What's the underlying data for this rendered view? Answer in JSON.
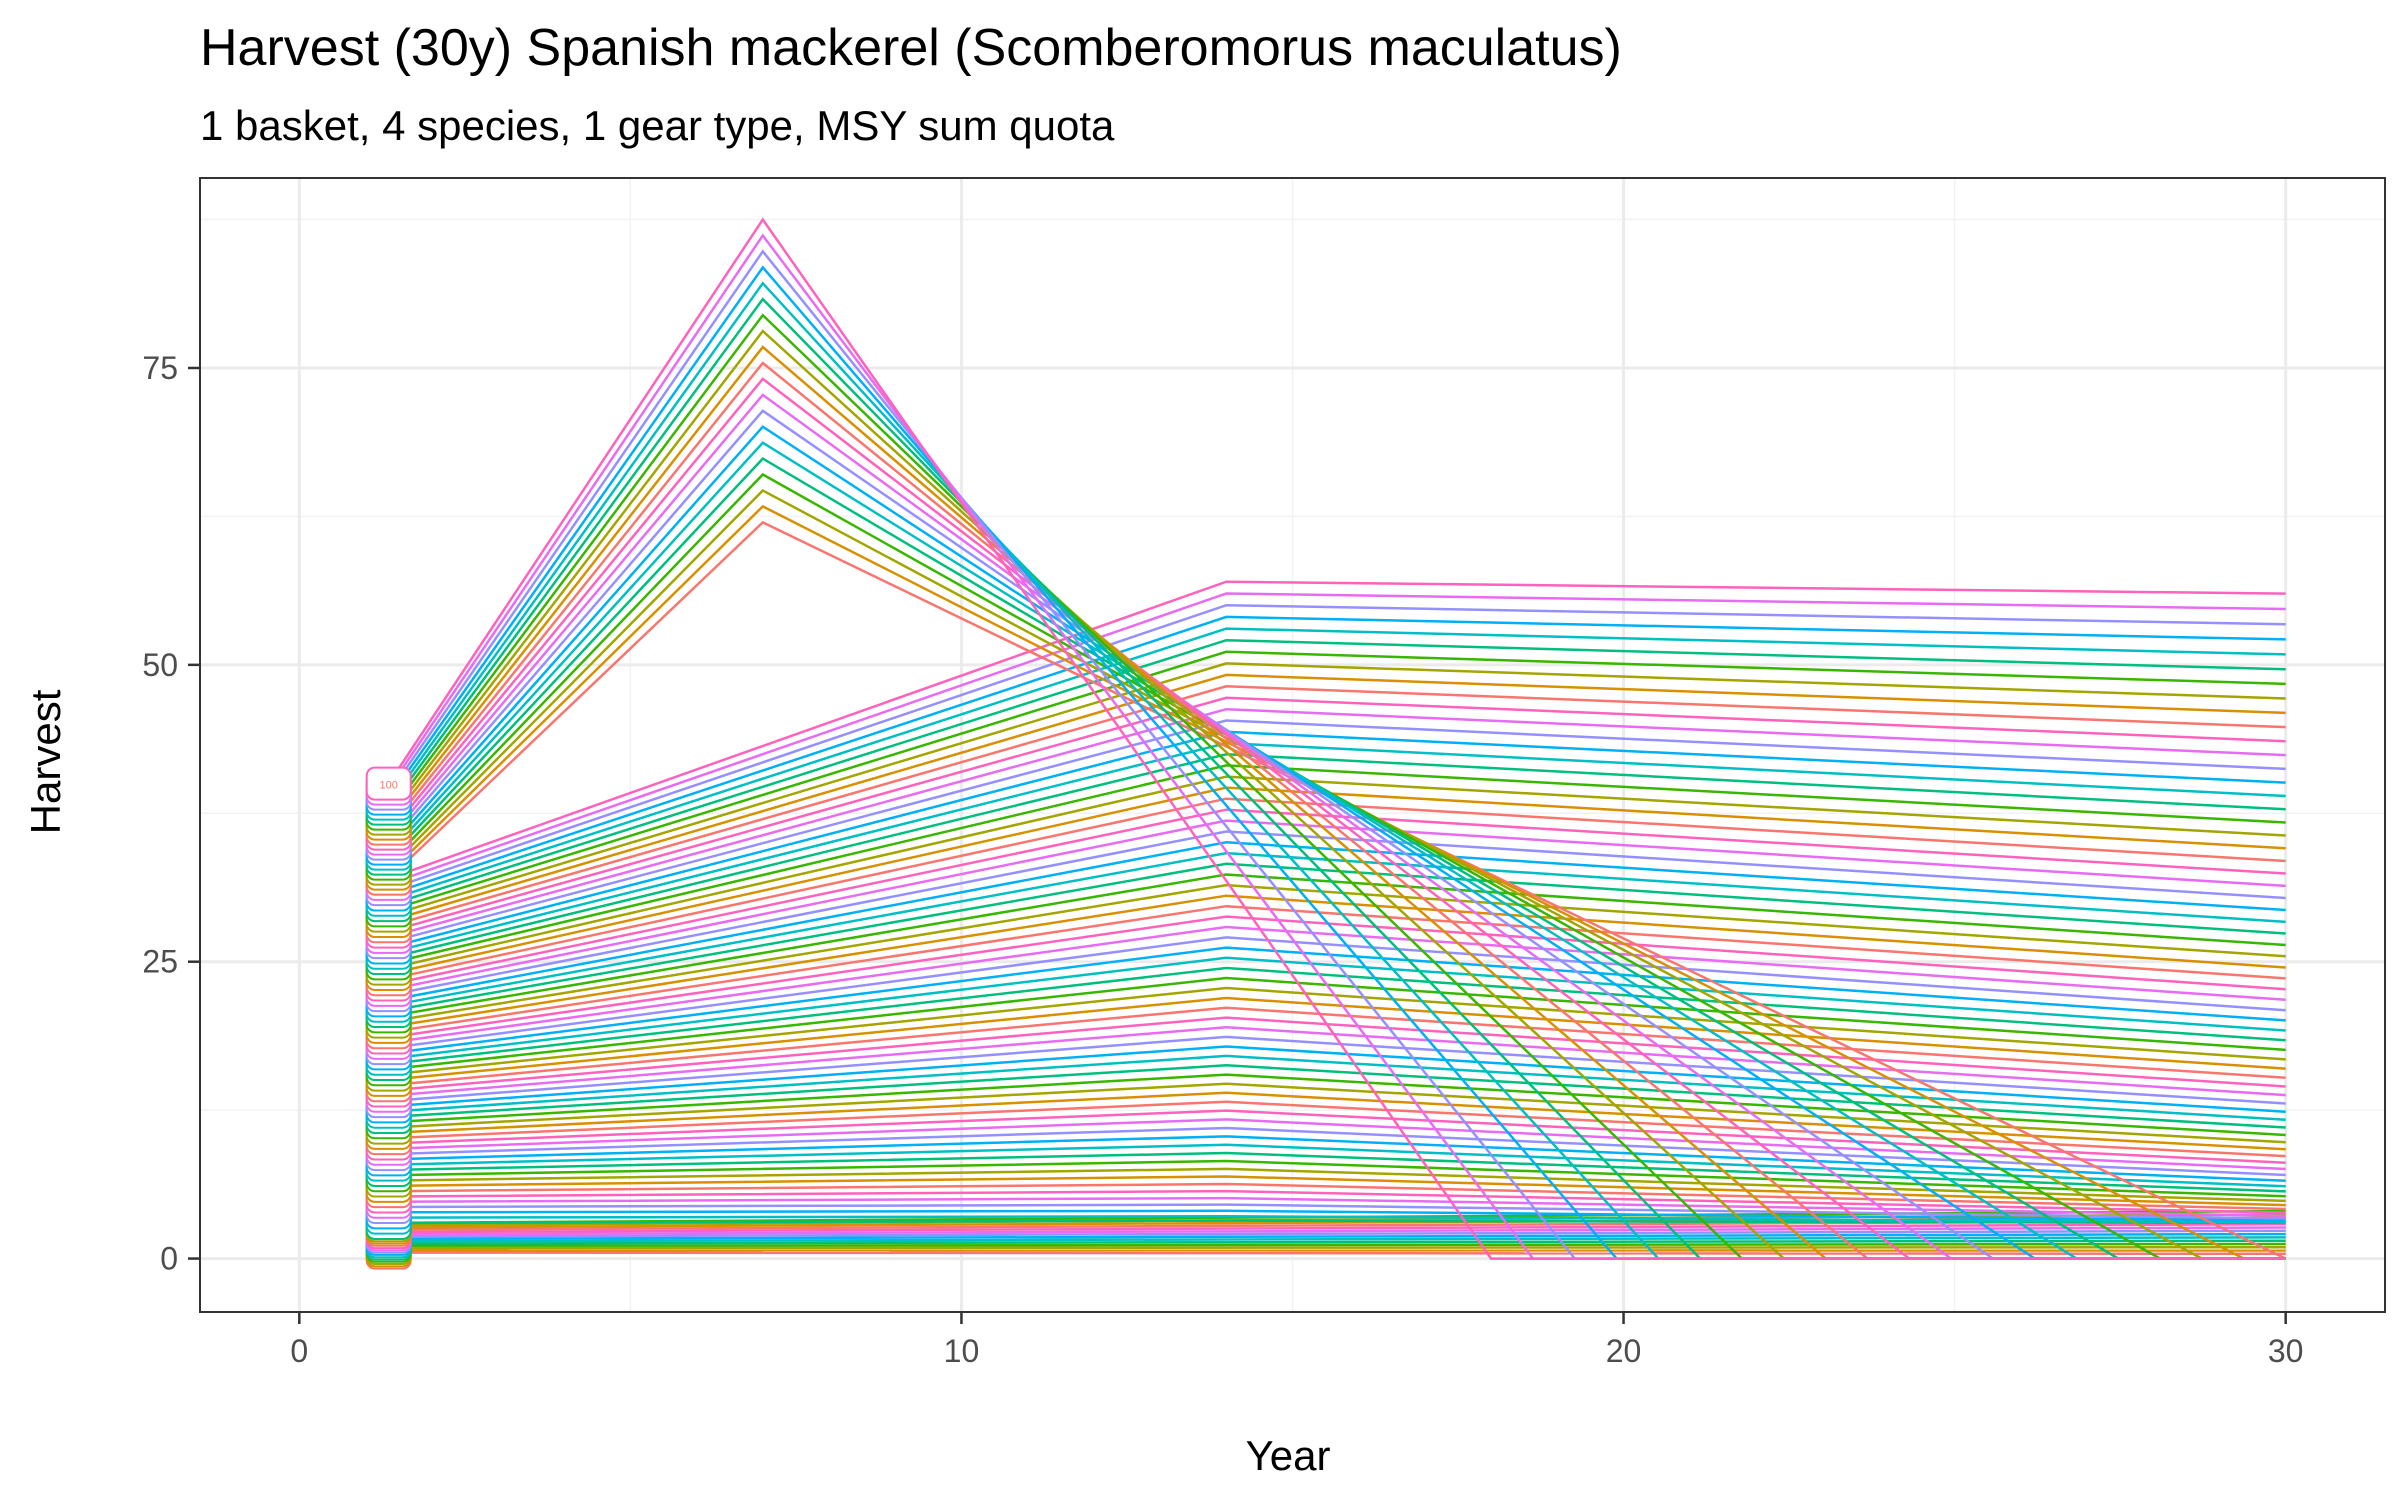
{
  "chart_data": {
    "type": "line",
    "title": "Harvest (30y) Spanish mackerel (Scomberomorus maculatus)",
    "subtitle": "1 basket, 4 species, 1 gear type, MSY sum quota",
    "xlabel": "Year",
    "ylabel": "Harvest",
    "xlim": [
      -1.5,
      31.5
    ],
    "ylim": [
      -4.5,
      91
    ],
    "x_ticks": [
      0,
      10,
      20,
      30
    ],
    "y_ticks": [
      0,
      25,
      50,
      75
    ],
    "grid": true,
    "legend": "none",
    "series_count": 100,
    "series_start_label": "100",
    "family": {
      "x_start": 1.35,
      "x_end": 30,
      "low_range": {
        "start_min": 0.5,
        "start_max": 3.0,
        "end_min": 0.4,
        "end_max": 4.0,
        "count": 14
      },
      "slope_fan": {
        "start_min": 3.0,
        "start_max": 32.0,
        "mid_min": 3.2,
        "mid_max": 57.0,
        "end_min": 3.0,
        "end_max": 56.0
      },
      "peak_fan": {
        "start_min": 32.0,
        "start_max": 40.0,
        "peak_x": 7,
        "peak_min": 62.0,
        "peak_max": 87.5,
        "end_x_min": 18.0,
        "end_x_max": 30.0
      }
    },
    "colors": [
      "#f8766d",
      "#d89000",
      "#a3a500",
      "#39b600",
      "#00bf7d",
      "#00bfc4",
      "#00b0f6",
      "#9590ff",
      "#e76bf3",
      "#ff62bc"
    ]
  }
}
